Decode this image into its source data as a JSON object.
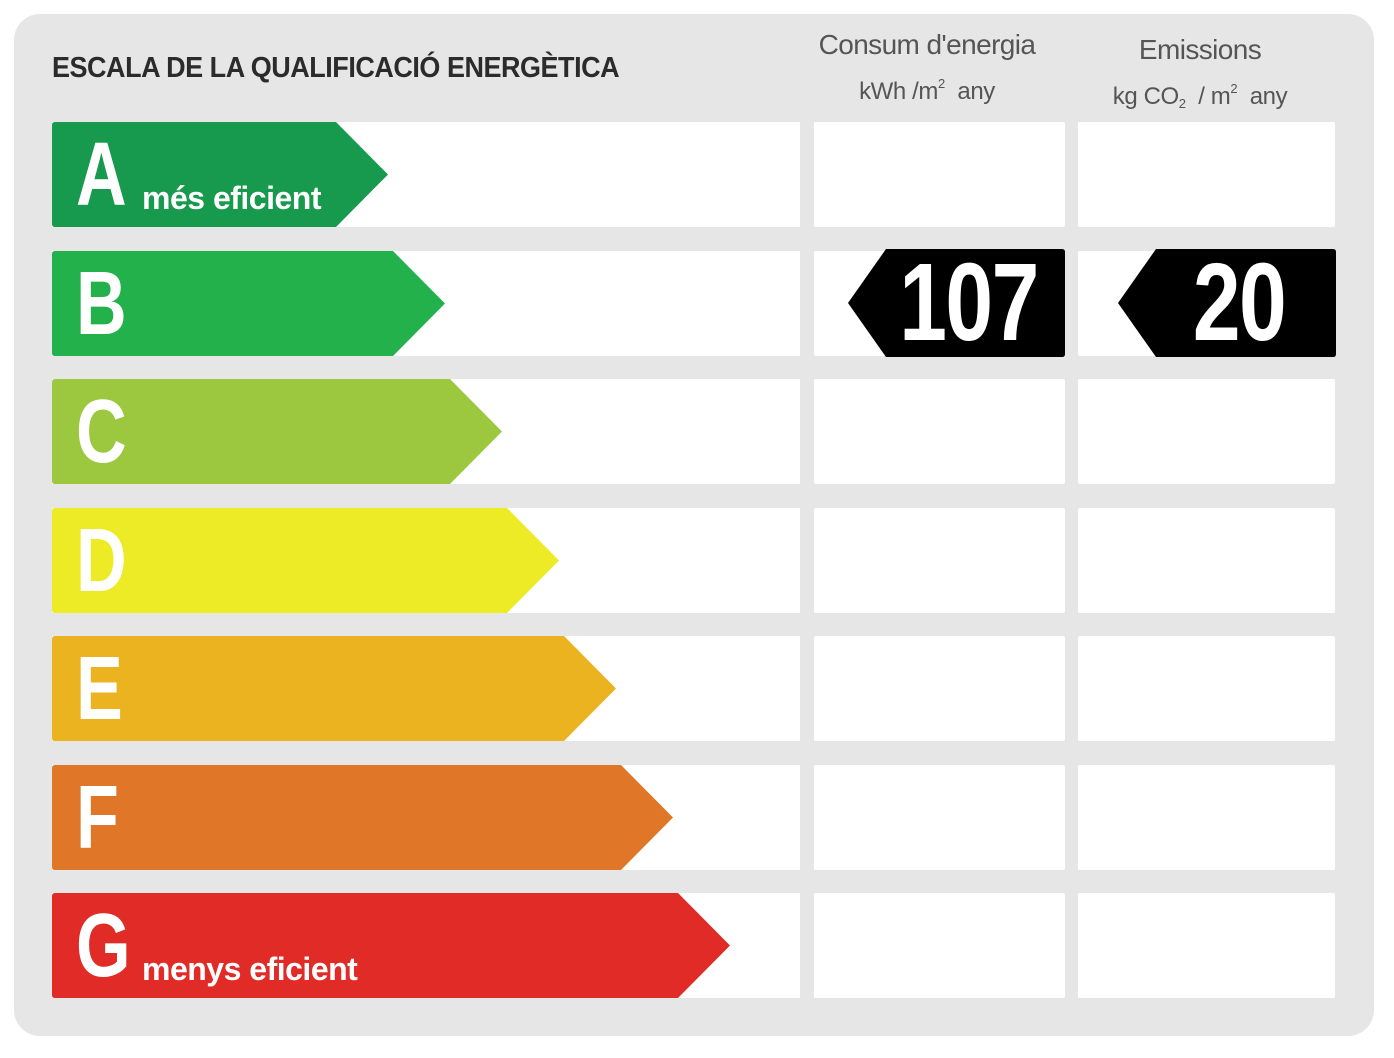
{
  "title": "ESCALA DE LA QUALIFICACIÓ ENERGÈTICA",
  "columns": {
    "energy": {
      "line1": "Consum d'energia",
      "unit_a": "kWh /m",
      "unit_sup": "2",
      "unit_b": "any"
    },
    "emissions": {
      "line1": "Emissions",
      "unit_a": "kg CO",
      "unit_sub": "2",
      "unit_c": "/ m",
      "unit_sup": "2",
      "unit_b": "any"
    }
  },
  "ratings": [
    {
      "letter": "A",
      "label": "més eficient",
      "color": "#17994e"
    },
    {
      "letter": "B",
      "label": "",
      "color": "#23b14b"
    },
    {
      "letter": "C",
      "label": "",
      "color": "#9bc83e"
    },
    {
      "letter": "D",
      "label": "",
      "color": "#eceb26"
    },
    {
      "letter": "E",
      "label": "",
      "color": "#ecb320"
    },
    {
      "letter": "F",
      "label": "",
      "color": "#e07728"
    },
    {
      "letter": "G",
      "label": "menys eficient",
      "color": "#e12b26"
    }
  ],
  "result": {
    "rating": "B",
    "energy_value": "107",
    "emissions_value": "20"
  }
}
